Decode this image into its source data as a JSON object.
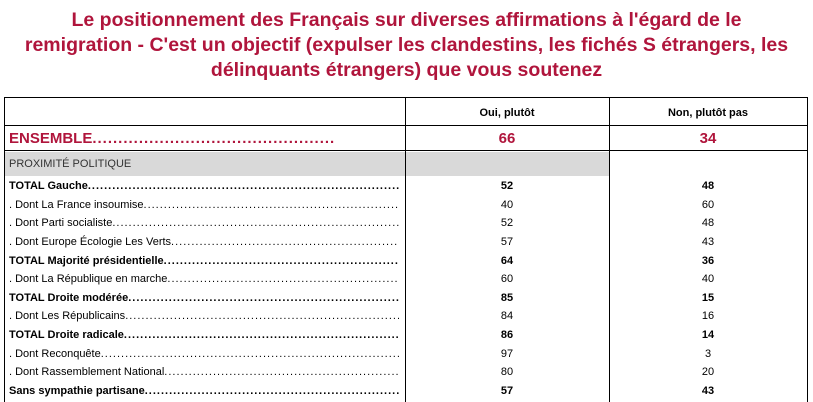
{
  "title": {
    "line1": "Le positionnement des Français sur diverses affirmations à l'égard de le",
    "line2": "remigration - C'est un objectif (expulser les clandestins, les fichés S étrangers, les",
    "line3": "délinquants étrangers) que vous soutenez"
  },
  "colors": {
    "accent": "#b0153c",
    "section_bg": "#d9d9d9"
  },
  "columns": [
    "Oui, plutôt",
    "Non, plutôt pas"
  ],
  "ensemble": {
    "label": "ENSEMBLE",
    "values": [
      "66",
      "34"
    ]
  },
  "section_label": "PROXIMITÉ POLITIQUE",
  "rows": [
    {
      "label": "TOTAL Gauche",
      "bold": true,
      "values": [
        "52",
        "48"
      ]
    },
    {
      "label": ". Dont La France insoumise",
      "bold": false,
      "values": [
        "40",
        "60"
      ]
    },
    {
      "label": ". Dont Parti socialiste",
      "bold": false,
      "values": [
        "52",
        "48"
      ]
    },
    {
      "label": ". Dont Europe Écologie Les Verts",
      "bold": false,
      "values": [
        "57",
        "43"
      ]
    },
    {
      "label": "TOTAL Majorité présidentielle",
      "bold": true,
      "values": [
        "64",
        "36"
      ]
    },
    {
      "label": ". Dont La République en marche",
      "bold": false,
      "values": [
        "60",
        "40"
      ]
    },
    {
      "label": "TOTAL Droite modérée",
      "bold": true,
      "values": [
        "85",
        "15"
      ]
    },
    {
      "label": ". Dont Les Républicains",
      "bold": false,
      "values": [
        "84",
        "16"
      ]
    },
    {
      "label": "TOTAL Droite radicale",
      "bold": true,
      "values": [
        "86",
        "14"
      ]
    },
    {
      "label": ". Dont Reconquête",
      "bold": false,
      "values": [
        "97",
        "3"
      ]
    },
    {
      "label": ". Dont Rassemblement National",
      "bold": false,
      "values": [
        "80",
        "20"
      ]
    },
    {
      "label": "Sans sympathie partisane",
      "bold": true,
      "values": [
        "57",
        "43"
      ]
    }
  ]
}
